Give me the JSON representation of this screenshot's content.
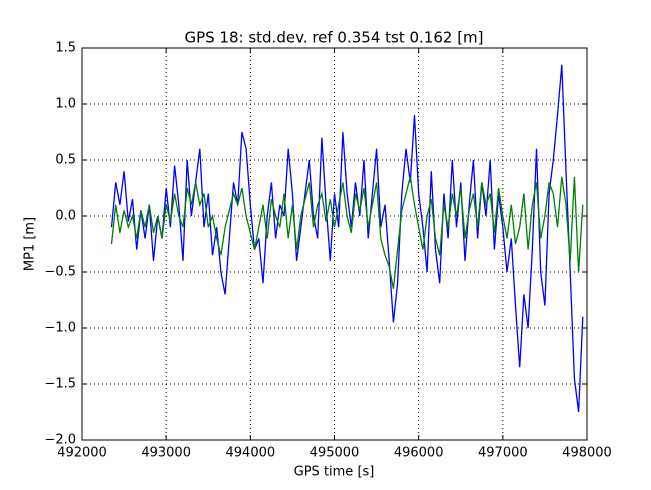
{
  "chart_data": {
    "type": "line",
    "title": "GPS 18: std.dev. ref 0.354 tst 0.162 [m]",
    "x_label": "GPS time [s]",
    "y_label": "MP1 [m]",
    "xlim": [
      492000,
      498000
    ],
    "xticks": [
      492000,
      493000,
      494000,
      495000,
      496000,
      497000,
      498000
    ],
    "ylim": [
      -2.0,
      1.5
    ],
    "yticks": [
      {
        "value": -2.0,
        "label": "−2.0"
      },
      {
        "value": -1.5,
        "label": "−1.5"
      },
      {
        "value": -1.0,
        "label": "−1.0"
      },
      {
        "value": -0.5,
        "label": "−0.5"
      },
      {
        "value": 0,
        "label": "0.0"
      },
      0.5,
      {
        "value": 1.0,
        "label": "1.0"
      },
      1.5
    ],
    "grid": true,
    "x": [
      492350,
      492400,
      492450,
      492500,
      492550,
      492600,
      492650,
      492700,
      492750,
      492800,
      492850,
      492900,
      492950,
      493000,
      493050,
      493100,
      493150,
      493200,
      493250,
      493300,
      493350,
      493400,
      493450,
      493500,
      493550,
      493600,
      493650,
      493700,
      493750,
      493800,
      493850,
      493900,
      493950,
      494000,
      494050,
      494100,
      494150,
      494200,
      494250,
      494300,
      494350,
      494400,
      494450,
      494500,
      494550,
      494600,
      494650,
      494700,
      494750,
      494800,
      494850,
      494900,
      494950,
      495000,
      495050,
      495100,
      495150,
      495200,
      495250,
      495300,
      495350,
      495400,
      495450,
      495500,
      495550,
      495600,
      495650,
      495700,
      495750,
      495800,
      495850,
      495900,
      495950,
      496000,
      496050,
      496100,
      496150,
      496200,
      496250,
      496300,
      496350,
      496400,
      496450,
      496500,
      496550,
      496600,
      496650,
      496700,
      496750,
      496800,
      496850,
      496900,
      496950,
      497000,
      497050,
      497100,
      497150,
      497200,
      497250,
      497300,
      497350,
      497400,
      497450,
      497500,
      497550,
      497600,
      497650,
      497700,
      497750,
      497800,
      497850,
      497900,
      497950
    ],
    "series": [
      {
        "color": "#0000ff",
        "values": [
          -0.1,
          0.3,
          0.1,
          0.4,
          -0.05,
          0.15,
          -0.3,
          0.05,
          -0.2,
          0.1,
          -0.4,
          0.0,
          -0.2,
          0.25,
          -0.1,
          0.45,
          0.1,
          -0.4,
          0.5,
          0.0,
          0.3,
          0.6,
          -0.1,
          0.2,
          -0.35,
          -0.1,
          -0.5,
          -0.7,
          -0.2,
          0.3,
          0.1,
          0.75,
          0.6,
          0.1,
          -0.3,
          -0.2,
          -0.6,
          0.0,
          0.3,
          -0.2,
          0.1,
          0.0,
          0.6,
          0.2,
          -0.4,
          -0.1,
          0.2,
          0.5,
          0.0,
          -0.2,
          0.7,
          0.1,
          -0.4,
          0.2,
          -0.1,
          0.75,
          0.2,
          -0.1,
          0.3,
          0.0,
          0.5,
          -0.2,
          0.2,
          0.6,
          -0.1,
          0.1,
          -0.4,
          -0.95,
          -0.6,
          0.2,
          0.6,
          0.3,
          0.9,
          0.2,
          -0.1,
          -0.5,
          0.4,
          -0.3,
          -0.6,
          0.2,
          -0.2,
          0.5,
          -0.1,
          0.3,
          -0.4,
          0.1,
          0.5,
          -0.2,
          0.3,
          0.0,
          0.5,
          -0.3,
          0.2,
          -0.1,
          -0.5,
          -0.2,
          -0.8,
          -1.35,
          -0.7,
          -1.0,
          -0.3,
          0.6,
          -0.5,
          -0.8,
          0.2,
          0.5,
          0.9,
          1.35,
          0.4,
          -0.5,
          -1.45,
          -1.75,
          -0.9
        ]
      },
      {
        "color": "#008000",
        "values": [
          -0.25,
          0.1,
          -0.15,
          0.05,
          -0.1,
          0.0,
          -0.2,
          0.05,
          -0.1,
          0.1,
          -0.15,
          0.0,
          -0.2,
          0.1,
          -0.05,
          0.2,
          0.0,
          -0.1,
          0.25,
          0.1,
          0.3,
          0.1,
          0.2,
          -0.1,
          0.0,
          -0.2,
          -0.35,
          -0.1,
          0.05,
          0.2,
          0.1,
          0.25,
          0.0,
          -0.15,
          -0.3,
          -0.1,
          0.1,
          -0.2,
          0.15,
          0.0,
          -0.1,
          0.2,
          -0.2,
          0.1,
          -0.3,
          0.0,
          0.15,
          0.3,
          -0.1,
          0.1,
          0.2,
          -0.05,
          0.15,
          -0.1,
          0.1,
          0.3,
          0.0,
          -0.15,
          0.2,
          0.05,
          0.25,
          -0.1,
          0.1,
          0.3,
          -0.2,
          -0.35,
          -0.45,
          -0.65,
          -0.3,
          0.05,
          0.2,
          0.35,
          0.1,
          -0.1,
          -0.3,
          0.0,
          0.15,
          -0.2,
          -0.35,
          0.1,
          -0.1,
          0.2,
          0.0,
          0.25,
          -0.2,
          0.05,
          0.2,
          -0.1,
          0.3,
          0.1,
          0.2,
          -0.15,
          0.25,
          0.0,
          -0.2,
          0.1,
          -0.25,
          -0.1,
          0.2,
          -0.3,
          0.1,
          0.3,
          -0.2,
          0.0,
          0.3,
          0.2,
          -0.1,
          0.35,
          0.1,
          -0.4,
          0.35,
          -0.5,
          0.1
        ]
      }
    ]
  }
}
